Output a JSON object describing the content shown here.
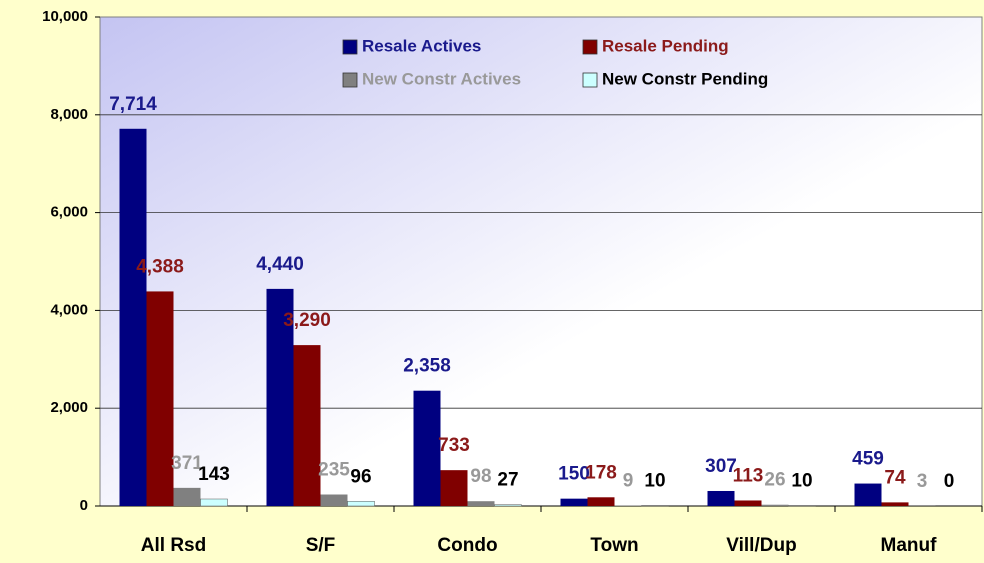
{
  "chart_data": {
    "type": "bar",
    "categories": [
      "All Rsd",
      "S/F",
      "Condo",
      "Town",
      "Vill/Dup",
      "Manuf"
    ],
    "series": [
      {
        "name": "Resale Actives",
        "color": "#000080",
        "label_color": "#1a1a8c",
        "values": [
          7714,
          4440,
          2358,
          150,
          307,
          459
        ]
      },
      {
        "name": "Resale Pending",
        "color": "#800000",
        "label_color": "#8b1a1a",
        "values": [
          4388,
          3290,
          733,
          178,
          113,
          74
        ]
      },
      {
        "name": "New Constr Actives",
        "color": "#808080",
        "label_color": "#999999",
        "values": [
          371,
          235,
          98,
          9,
          26,
          3
        ]
      },
      {
        "name": "New Constr Pending",
        "color": "#ccffff",
        "label_color": "#000000",
        "values": [
          143,
          96,
          27,
          10,
          10,
          0
        ]
      }
    ],
    "value_labels": [
      [
        "7,714",
        "4,440",
        "2,358",
        "150",
        "307",
        "459"
      ],
      [
        "4,388",
        "3,290",
        "733",
        "178",
        "113",
        "74"
      ],
      [
        "371",
        "235",
        "98",
        "9",
        "26",
        "3"
      ],
      [
        "143",
        "96",
        "27",
        "10",
        "10",
        "0"
      ]
    ],
    "ylim": [
      0,
      10000
    ],
    "yticks": [
      0,
      {
        "value": 2000,
        "label": "2,000"
      },
      {
        "value": 4000,
        "label": "4,000"
      },
      {
        "value": 6000,
        "label": "6,000"
      },
      {
        "value": 8000,
        "label": "8,000"
      },
      {
        "value": 10000,
        "label": "10,000"
      }
    ],
    "grid": true
  }
}
